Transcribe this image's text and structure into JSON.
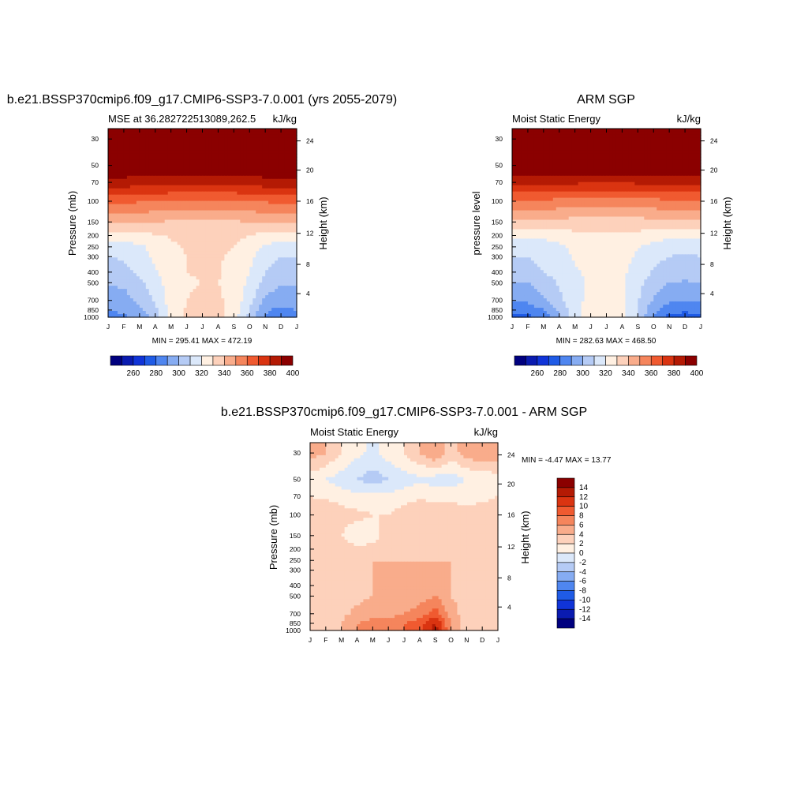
{
  "colors": {
    "mse_scale": [
      "#00007f",
      "#0a1bb0",
      "#1034d8",
      "#1f5be6",
      "#4f86f0",
      "#86acf2",
      "#b5cbf5",
      "#dbe8fa",
      "#fff0e2",
      "#fdd1bb",
      "#f9ac8b",
      "#f5855c",
      "#f05a30",
      "#da3411",
      "#b41a04",
      "#8b0000"
    ],
    "diff_scale": [
      "#00007f",
      "#0a1bb0",
      "#1034d8",
      "#1f5be6",
      "#4f86f0",
      "#86acf2",
      "#b5cbf5",
      "#dbe8fa",
      "#fff0e2",
      "#fdd1bb",
      "#f9ac8b",
      "#f5855c",
      "#f05a30",
      "#da3411",
      "#b41a04",
      "#8b0000"
    ]
  },
  "chart_data": [
    {
      "type": "heatmap",
      "title": "b.e21.BSSP370cmip6.f09_g17.CMIP6-SSP3-7.0.001 (yrs 2055-2079)",
      "left_string": "MSE at 36.282722513089,262.5",
      "right_string": "kJ/kg",
      "ylabel": "Pressure (mb)",
      "ylabel_right": "Height (km)",
      "x_ticks": [
        "J",
        "F",
        "M",
        "A",
        "M",
        "J",
        "J",
        "A",
        "S",
        "O",
        "N",
        "D",
        "J"
      ],
      "y_ticks": [
        "30",
        "50",
        "70",
        "100",
        "150",
        "200",
        "250",
        "300",
        "400",
        "500",
        "700",
        "850",
        "1000"
      ],
      "y_ticks_right": [
        "24",
        "20",
        "16",
        "12",
        "8",
        "4"
      ],
      "y_ticks_right_values": [
        24,
        20,
        16,
        12,
        8,
        4
      ],
      "stats": "MIN = 295.41 MAX = 472.19",
      "colorbar_labels": [
        "260",
        "280",
        "300",
        "320",
        "340",
        "360",
        "380",
        "400"
      ],
      "levels": [
        260,
        270,
        280,
        290,
        300,
        310,
        320,
        330,
        340,
        350,
        360,
        370,
        380,
        390,
        400
      ],
      "values": [
        [
          410,
          410,
          410,
          410,
          410,
          410,
          410,
          410,
          410,
          410,
          410,
          410,
          410
        ],
        [
          410,
          410,
          410,
          410,
          410,
          410,
          410,
          410,
          410,
          410,
          410,
          410,
          410
        ],
        [
          396,
          396,
          395,
          395,
          394,
          393,
          393,
          393,
          394,
          395,
          396,
          396,
          396
        ],
        [
          372,
          372,
          371,
          370,
          369,
          368,
          368,
          368,
          369,
          370,
          371,
          372,
          372
        ],
        [
          352,
          352,
          351,
          350,
          349,
          348,
          347,
          348,
          349,
          350,
          351,
          352,
          352
        ],
        [
          336,
          336,
          337,
          339,
          341,
          343,
          344,
          344,
          342,
          340,
          337,
          336,
          336
        ],
        [
          325,
          325,
          328,
          333,
          338,
          341,
          342,
          342,
          340,
          335,
          328,
          325,
          325
        ],
        [
          320,
          321,
          326,
          332,
          337,
          340,
          342,
          341,
          338,
          332,
          325,
          320,
          320
        ],
        [
          316,
          317,
          322,
          329,
          336,
          340,
          341,
          341,
          337,
          330,
          320,
          316,
          316
        ],
        [
          311,
          312,
          318,
          326,
          335,
          339,
          340,
          340,
          336,
          328,
          316,
          311,
          311
        ],
        [
          305,
          306,
          312,
          322,
          334,
          340,
          342,
          342,
          336,
          324,
          308,
          304,
          305
        ],
        [
          300,
          302,
          307,
          318,
          334,
          341,
          344,
          344,
          336,
          320,
          302,
          297,
          300
        ],
        [
          296,
          298,
          303,
          314,
          333,
          341,
          344,
          344,
          335,
          316,
          298,
          294,
          296
        ]
      ]
    },
    {
      "type": "heatmap",
      "title": "ARM SGP",
      "left_string": "Moist Static Energy",
      "right_string": "kJ/kg",
      "ylabel": "pressure level",
      "ylabel_right": "Height (km)",
      "x_ticks": [
        "J",
        "F",
        "M",
        "A",
        "M",
        "J",
        "J",
        "A",
        "S",
        "O",
        "N",
        "D",
        "J"
      ],
      "y_ticks": [
        "30",
        "50",
        "70",
        "100",
        "150",
        "200",
        "250",
        "300",
        "400",
        "500",
        "700",
        "850",
        "1000"
      ],
      "y_ticks_right": [
        "24",
        "20",
        "16",
        "12",
        "8",
        "4"
      ],
      "y_ticks_right_values": [
        24,
        20,
        16,
        12,
        8,
        4
      ],
      "stats": "MIN = 282.63 MAX = 468.50",
      "colorbar_labels": [
        "260",
        "280",
        "300",
        "320",
        "340",
        "360",
        "380",
        "400"
      ],
      "levels": [
        260,
        270,
        280,
        290,
        300,
        310,
        320,
        330,
        340,
        350,
        360,
        370,
        380,
        390,
        400
      ],
      "values": [
        [
          410,
          410,
          410,
          410,
          410,
          410,
          410,
          410,
          410,
          410,
          410,
          410,
          410
        ],
        [
          410,
          410,
          410,
          410,
          410,
          410,
          410,
          410,
          410,
          410,
          410,
          410,
          410
        ],
        [
          394,
          394,
          393,
          393,
          392,
          391,
          391,
          391,
          392,
          393,
          394,
          394,
          394
        ],
        [
          369,
          369,
          368,
          367,
          366,
          365,
          365,
          365,
          366,
          367,
          368,
          369,
          369
        ],
        [
          349,
          349,
          348,
          347,
          346,
          345,
          345,
          345,
          346,
          347,
          348,
          349,
          349
        ],
        [
          332,
          332,
          333,
          335,
          337,
          338,
          339,
          339,
          337,
          335,
          333,
          332,
          332
        ],
        [
          323,
          323,
          325,
          328,
          332,
          336,
          338,
          336,
          331,
          326,
          323,
          322,
          323
        ],
        [
          320,
          320,
          323,
          327,
          331,
          334,
          337,
          334,
          328,
          323,
          320,
          319,
          320
        ],
        [
          316,
          316,
          320,
          324,
          329,
          332,
          334,
          332,
          326,
          319,
          315,
          314,
          316
        ],
        [
          310,
          310,
          315,
          321,
          328,
          331,
          333,
          331,
          323,
          315,
          310,
          309,
          310
        ],
        [
          302,
          302,
          308,
          317,
          328,
          332,
          334,
          332,
          321,
          309,
          302,
          300,
          302
        ],
        [
          294,
          294,
          300,
          312,
          327,
          333,
          335,
          333,
          320,
          303,
          293,
          292,
          294
        ],
        [
          287,
          288,
          295,
          308,
          326,
          334,
          336,
          334,
          319,
          298,
          287,
          285,
          287
        ]
      ]
    },
    {
      "type": "heatmap",
      "title": "b.e21.BSSP370cmip6.f09_g17.CMIP6-SSP3-7.0.001 - ARM SGP",
      "left_string": "Moist Static Energy",
      "right_string": "kJ/kg",
      "ylabel": "Pressure (mb)",
      "ylabel_right": "Height (km)",
      "x_ticks": [
        "J",
        "F",
        "M",
        "A",
        "M",
        "J",
        "J",
        "A",
        "S",
        "O",
        "N",
        "D",
        "J"
      ],
      "y_ticks": [
        "30",
        "50",
        "70",
        "100",
        "150",
        "200",
        "250",
        "300",
        "400",
        "500",
        "700",
        "850",
        "1000"
      ],
      "y_ticks_right": [
        "24",
        "20",
        "16",
        "12",
        "8",
        "4"
      ],
      "y_ticks_right_values": [
        24,
        20,
        16,
        12,
        8,
        4
      ],
      "stats": "MIN =  -4.47 MAX =  13.77",
      "colorbar_labels": [
        "14",
        "12",
        "10",
        "8",
        "6",
        "4",
        "2",
        "0",
        "-2",
        "-4",
        "-6",
        "-8",
        "-10",
        "-12",
        "-14"
      ],
      "levels": [
        -14,
        -12,
        -10,
        -8,
        -6,
        -4,
        -2,
        0,
        2,
        4,
        6,
        8,
        10,
        12,
        14
      ],
      "values": [
        [
          5,
          4,
          2,
          0.5,
          -0.5,
          1,
          2,
          4,
          6,
          3,
          5,
          6,
          5
        ],
        [
          1,
          0,
          -1,
          -2,
          -3,
          -2,
          -1,
          -0.5,
          -1,
          -1,
          0,
          0.5,
          1
        ],
        [
          2,
          1.5,
          1,
          0.5,
          1,
          0.5,
          1,
          1.5,
          1.5,
          1.5,
          1,
          1.5,
          2
        ],
        [
          3,
          4,
          3,
          2.5,
          2,
          2,
          3,
          4,
          3,
          3,
          3,
          3,
          3
        ],
        [
          2,
          2.5,
          2,
          0.5,
          1.5,
          2.5,
          3,
          2.5,
          2,
          2,
          2,
          2,
          2
        ],
        [
          2.5,
          3,
          3,
          2.5,
          2.5,
          3,
          3,
          3,
          3,
          3,
          2.5,
          2.5,
          2.5
        ],
        [
          2.5,
          2.5,
          3,
          3.5,
          4,
          4,
          4,
          4,
          4,
          4,
          3,
          2.5,
          2.5
        ],
        [
          2.5,
          2.5,
          3,
          3.5,
          4,
          4.5,
          4.5,
          4.5,
          5,
          4,
          3,
          2.5,
          2.5
        ],
        [
          2.5,
          2.5,
          3,
          3.5,
          4,
          4.5,
          4.5,
          5,
          6,
          4,
          3,
          2.5,
          2.5
        ],
        [
          2.5,
          2.5,
          3,
          3.5,
          4,
          4.5,
          4.5,
          5,
          6,
          4,
          3,
          2.5,
          2.5
        ],
        [
          2.5,
          3,
          3.5,
          4.5,
          5,
          5,
          6,
          7,
          9,
          5,
          3,
          2.5,
          2.5
        ],
        [
          3,
          3.5,
          4,
          6,
          7,
          7,
          8,
          9,
          12,
          6,
          3,
          2.5,
          3
        ],
        [
          3,
          3.5,
          4,
          6,
          7,
          8,
          8,
          9,
          13,
          6,
          3,
          2.5,
          3
        ]
      ]
    }
  ]
}
